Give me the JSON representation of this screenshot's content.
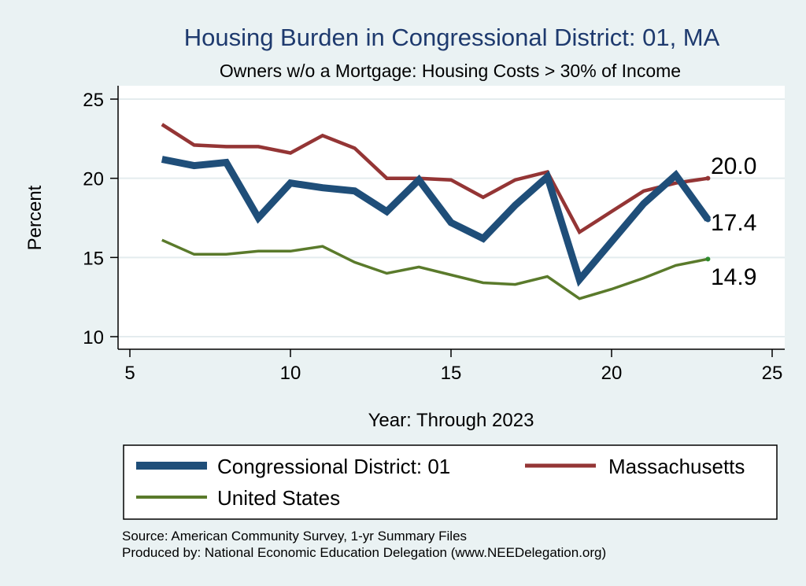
{
  "chart_data": {
    "type": "line",
    "title": "Housing Burden in Congressional District:  01, MA",
    "subtitle": "Owners w/o a Mortgage: Housing Costs > 30% of Income",
    "xlabel": "Year: Through 2023",
    "ylabel": "Percent",
    "xlim": [
      5,
      25
    ],
    "ylim": [
      10,
      25
    ],
    "xticks": [
      5,
      10,
      15,
      20,
      25
    ],
    "yticks": [
      10,
      15,
      20,
      25
    ],
    "grid": true,
    "x": [
      6,
      7,
      8,
      9,
      10,
      11,
      12,
      13,
      14,
      15,
      16,
      17,
      18,
      19,
      20,
      21,
      22,
      23
    ],
    "series": [
      {
        "name": "Congressional District:  01",
        "color": "#1f4e79",
        "values": [
          21.2,
          20.8,
          21.0,
          17.5,
          19.7,
          19.4,
          19.2,
          17.9,
          19.9,
          17.2,
          16.2,
          18.3,
          20.1,
          13.6,
          16.0,
          18.4,
          20.2,
          17.4
        ],
        "end_label": "17.4"
      },
      {
        "name": "Massachusetts",
        "color": "#943535",
        "values": [
          23.4,
          22.1,
          22.0,
          22.0,
          21.6,
          22.7,
          21.9,
          20.0,
          20.0,
          19.9,
          18.8,
          19.9,
          20.4,
          16.6,
          17.9,
          19.2,
          19.7,
          20.0
        ],
        "end_label": "20.0"
      },
      {
        "name": "United States",
        "color": "#5a7a2b",
        "values": [
          16.1,
          15.2,
          15.2,
          15.4,
          15.4,
          15.7,
          14.7,
          14.0,
          14.4,
          13.9,
          13.4,
          13.3,
          13.8,
          12.4,
          13.0,
          13.7,
          14.5,
          14.9
        ],
        "end_label": "14.9"
      }
    ]
  },
  "legend": {
    "items": [
      "Congressional District:  01",
      "Massachusetts",
      "United States"
    ]
  },
  "footer": {
    "source": "Source: American Community Survey, 1-yr Summary Files",
    "produced_by": "Produced by: National Economic Education Delegation (www.NEEDelegation.org)"
  },
  "colors": {
    "background": "#eaf2f3",
    "plot_background": "#ffffff",
    "title": "#1e3a6e"
  }
}
